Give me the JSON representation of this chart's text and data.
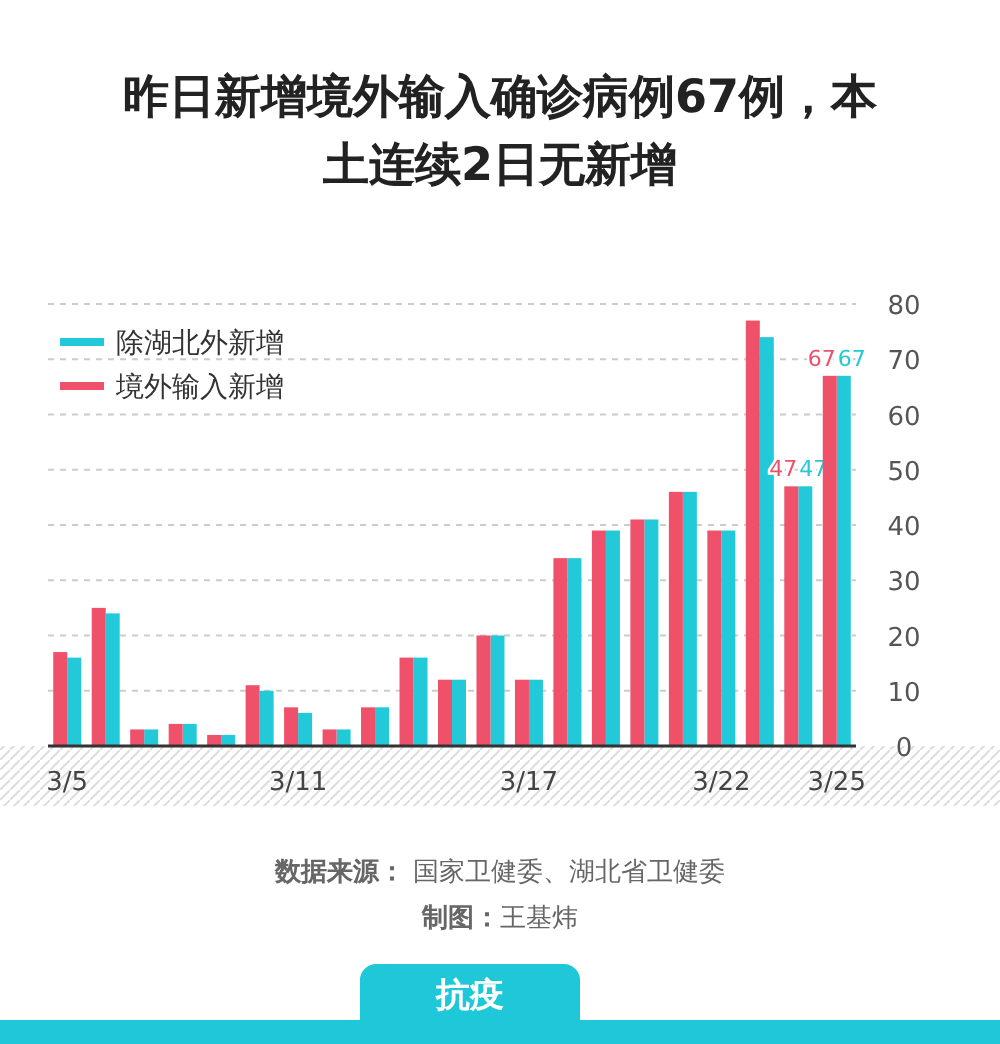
{
  "chart_data": {
    "type": "bar",
    "title": "昨日新增境外输入确诊病例67例，本土连续2日无新增",
    "categories": [
      "3/5",
      null,
      null,
      null,
      null,
      null,
      "3/11",
      null,
      null,
      null,
      null,
      null,
      "3/17",
      null,
      null,
      null,
      null,
      "3/22",
      null,
      null,
      "3/25"
    ],
    "series": [
      {
        "name": "除湖北外新增",
        "color": "#22c9d8",
        "values": [
          16,
          24,
          3,
          4,
          2,
          10,
          6,
          3,
          7,
          16,
          12,
          20,
          12,
          34,
          39,
          41,
          46,
          39,
          74,
          47,
          67
        ],
        "value_labels": [
          null,
          null,
          null,
          null,
          null,
          null,
          null,
          null,
          null,
          null,
          null,
          null,
          null,
          null,
          null,
          null,
          null,
          null,
          null,
          "47",
          "67"
        ]
      },
      {
        "name": "境外输入新增",
        "color": "#f0516a",
        "values": [
          17,
          25,
          3,
          4,
          2,
          11,
          7,
          3,
          7,
          16,
          12,
          20,
          12,
          34,
          39,
          41,
          46,
          39,
          77,
          47,
          67
        ],
        "value_labels": [
          null,
          null,
          null,
          null,
          null,
          null,
          null,
          null,
          null,
          null,
          null,
          null,
          null,
          null,
          null,
          null,
          null,
          null,
          null,
          "47",
          "67"
        ]
      }
    ],
    "ylim": [
      0,
      80
    ],
    "yticks": [
      0,
      10,
      20,
      30,
      40,
      50,
      60,
      70,
      80
    ],
    "grid": "y",
    "legend": "top left",
    "annotations": [
      "**数据来源：** 国家卫健委、湖北省卫健委",
      "**制图：**王基炜",
      "抗疫"
    ]
  }
}
